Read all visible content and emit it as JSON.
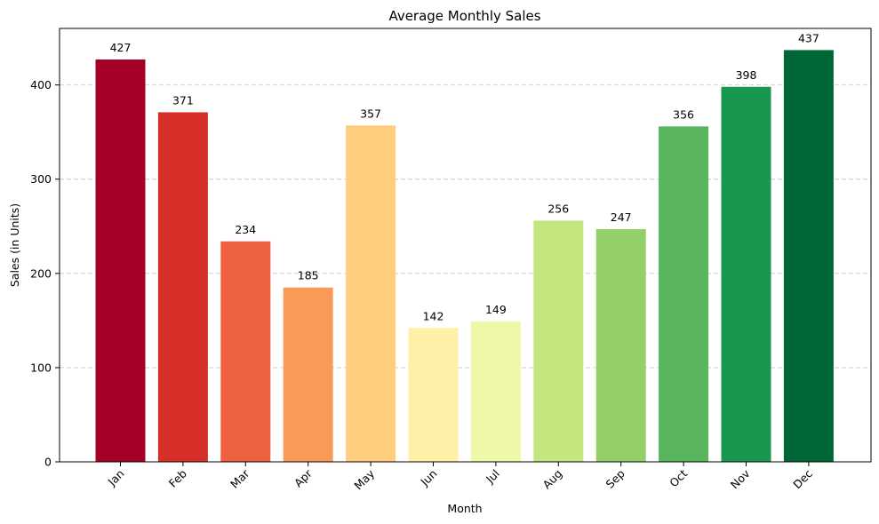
{
  "chart_data": {
    "type": "bar",
    "title": "Average Monthly Sales",
    "xlabel": "Month",
    "ylabel": "Sales (in Units)",
    "categories": [
      "Jan",
      "Feb",
      "Mar",
      "Apr",
      "May",
      "Jun",
      "Jul",
      "Aug",
      "Sep",
      "Oct",
      "Nov",
      "Dec"
    ],
    "values": [
      427,
      371,
      234,
      185,
      357,
      142,
      149,
      256,
      247,
      356,
      398,
      437
    ],
    "data_labels": [
      "427",
      "371",
      "234",
      "185",
      "357",
      "142",
      "149",
      "256",
      "247",
      "356",
      "398",
      "437"
    ],
    "colors": [
      "#a50026",
      "#d62f27",
      "#ed6140",
      "#f99a59",
      "#fecd7d",
      "#fff0a8",
      "#eef8a8",
      "#c5e67e",
      "#94d068",
      "#58b45d",
      "#199650",
      "#006837"
    ],
    "ylim": [
      0,
      460
    ],
    "yticks": [
      0,
      100,
      200,
      300,
      400
    ],
    "ytick_labels": [
      "0",
      "100",
      "200",
      "300",
      "400"
    ],
    "xtick_rotation": 45,
    "grid": "y-dashed",
    "legend": "none"
  }
}
